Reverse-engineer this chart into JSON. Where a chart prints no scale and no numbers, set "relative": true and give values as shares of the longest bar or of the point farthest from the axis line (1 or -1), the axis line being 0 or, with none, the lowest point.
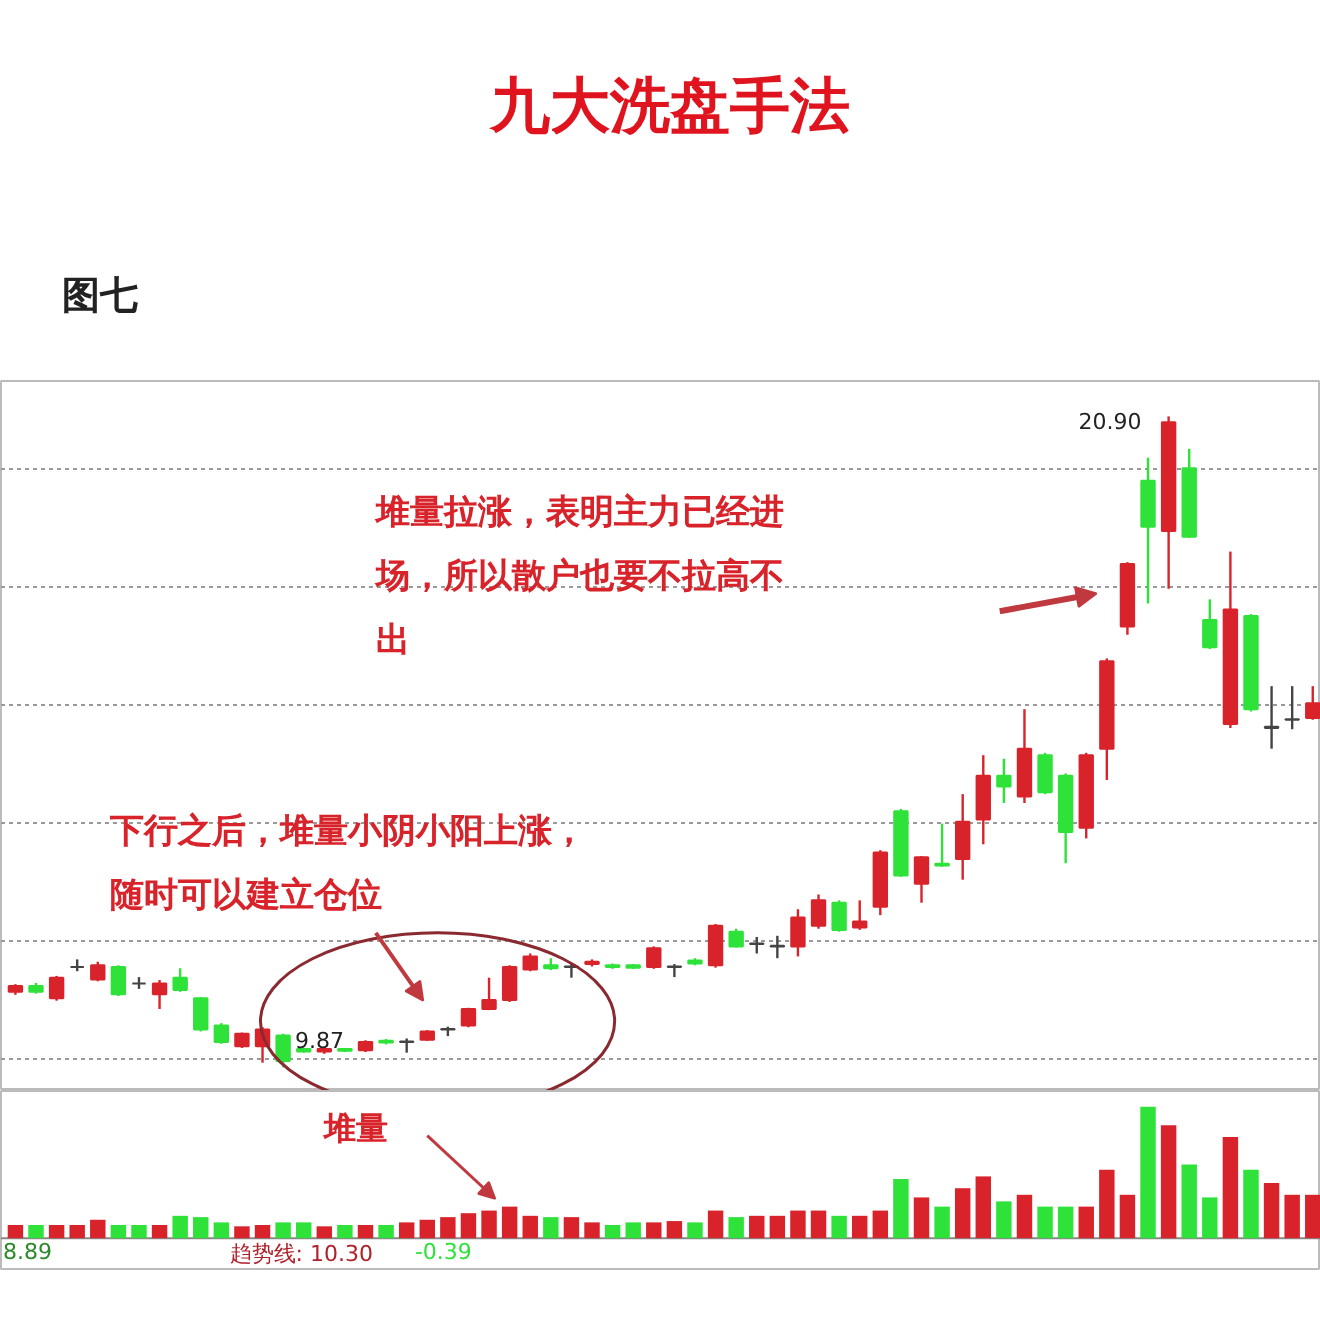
{
  "chart_data": [
    {
      "type": "candlestick",
      "title": "九大洗盘手法",
      "subtitle": "图七",
      "categories": [
        null,
        null,
        null,
        null,
        null,
        null,
        null,
        null,
        null,
        null,
        null,
        null,
        null,
        null,
        null,
        null,
        null,
        null,
        null,
        null,
        null,
        null,
        null,
        null,
        null,
        null,
        null,
        null,
        null,
        null,
        null,
        null,
        null,
        null,
        null,
        null,
        null,
        null,
        null,
        null,
        null,
        null,
        null,
        null,
        null,
        null,
        null,
        null,
        null,
        null,
        null,
        null,
        null,
        null,
        null,
        null,
        null,
        null,
        null,
        null,
        null,
        null,
        null,
        null
      ],
      "ohlc": [
        [
          11.15,
          11.28,
          11.1,
          11.25
        ],
        [
          11.25,
          11.3,
          11.12,
          11.15
        ],
        [
          11.04,
          11.42,
          11.0,
          11.39
        ],
        [
          11.57,
          11.7,
          11.5,
          11.57
        ],
        [
          11.36,
          11.66,
          11.33,
          11.6
        ],
        [
          11.57,
          11.6,
          11.08,
          11.11
        ],
        [
          11.29,
          11.4,
          11.2,
          11.29
        ],
        [
          11.11,
          11.35,
          10.86,
          11.29
        ],
        [
          11.39,
          11.55,
          11.15,
          11.18
        ],
        [
          11.04,
          11.06,
          10.48,
          10.51
        ],
        [
          10.58,
          10.62,
          10.27,
          10.3
        ],
        [
          10.23,
          10.46,
          10.2,
          10.44
        ],
        [
          10.23,
          10.55,
          9.95,
          10.51
        ],
        [
          10.41,
          10.44,
          9.87,
          9.98
        ],
        [
          10.18,
          10.2,
          10.12,
          10.14
        ],
        [
          10.14,
          10.2,
          10.1,
          10.18
        ],
        [
          10.18,
          10.2,
          10.13,
          10.15
        ],
        [
          10.16,
          10.33,
          10.13,
          10.3
        ],
        [
          10.32,
          10.35,
          10.26,
          10.29
        ],
        [
          10.3,
          10.36,
          10.12,
          10.31
        ],
        [
          10.34,
          10.5,
          10.32,
          10.48
        ],
        [
          10.51,
          10.56,
          10.4,
          10.52
        ],
        [
          10.58,
          10.88,
          10.55,
          10.86
        ],
        [
          10.86,
          11.39,
          10.84,
          11.01
        ],
        [
          11.01,
          11.6,
          10.98,
          11.57
        ],
        [
          11.53,
          11.8,
          11.5,
          11.75
        ],
        [
          11.6,
          11.72,
          11.52,
          11.55
        ],
        [
          11.57,
          11.62,
          11.39,
          11.58
        ],
        [
          11.62,
          11.7,
          11.58,
          11.66
        ],
        [
          11.6,
          11.63,
          11.54,
          11.57
        ],
        [
          11.6,
          11.62,
          11.54,
          11.56
        ],
        [
          11.57,
          11.92,
          11.54,
          11.89
        ],
        [
          11.57,
          11.62,
          11.4,
          11.58
        ],
        [
          11.68,
          11.72,
          11.6,
          11.63
        ],
        [
          11.6,
          12.3,
          11.56,
          12.27
        ],
        [
          12.17,
          12.22,
          11.9,
          11.92
        ],
        [
          11.96,
          12.08,
          11.8,
          11.97
        ],
        [
          11.92,
          12.1,
          11.72,
          11.93
        ],
        [
          11.92,
          12.55,
          11.75,
          12.41
        ],
        [
          12.27,
          12.8,
          12.22,
          12.7
        ],
        [
          12.66,
          12.7,
          12.17,
          12.2
        ],
        [
          12.24,
          12.7,
          12.2,
          12.34
        ],
        [
          12.59,
          13.55,
          12.45,
          13.51
        ],
        [
          14.21,
          14.25,
          13.1,
          13.12
        ],
        [
          12.98,
          13.45,
          12.66,
          13.43
        ],
        [
          13.32,
          14.0,
          13.27,
          13.29
        ],
        [
          13.4,
          14.5,
          13.05,
          14.03
        ],
        [
          14.07,
          15.16,
          13.65,
          14.81
        ],
        [
          14.81,
          15.1,
          14.35,
          14.63
        ],
        [
          14.46,
          15.94,
          14.35,
          15.27
        ],
        [
          15.16,
          15.2,
          14.5,
          14.53
        ],
        [
          14.81,
          14.85,
          13.33,
          13.86
        ],
        [
          13.93,
          15.2,
          13.75,
          15.16
        ],
        [
          15.27,
          16.8,
          14.74,
          16.75
        ],
        [
          17.34,
          18.43,
          17.2,
          18.4
        ],
        [
          19.81,
          20.2,
          17.73,
          19.03
        ],
        [
          18.96,
          20.9,
          17.98,
          20.8
        ],
        [
          20.02,
          20.35,
          18.84,
          18.86
        ],
        [
          17.45,
          17.8,
          16.96,
          16.99
        ],
        [
          15.69,
          18.61,
          15.62,
          17.63
        ],
        [
          17.52,
          17.55,
          15.9,
          15.94
        ],
        [
          15.62,
          16.33,
          15.27,
          15.64
        ],
        [
          15.76,
          16.33,
          15.6,
          15.77
        ],
        [
          15.79,
          16.33,
          15.76,
          16.04
        ]
      ],
      "colors": [
        "#d9232b",
        "#2ee23a",
        "#d9232b",
        "#444444",
        "#d9232b",
        "#2ee23a",
        "#444444",
        "#d9232b",
        "#2ee23a",
        "#2ee23a",
        "#2ee23a",
        "#d9232b",
        "#d9232b",
        "#2ee23a",
        "#2ee23a",
        "#d9232b",
        "#2ee23a",
        "#d9232b",
        "#2ee23a",
        "#444444",
        "#d9232b",
        "#444444",
        "#d9232b",
        "#d9232b",
        "#d9232b",
        "#d9232b",
        "#2ee23a",
        "#444444",
        "#d9232b",
        "#2ee23a",
        "#2ee23a",
        "#d9232b",
        "#444444",
        "#2ee23a",
        "#d9232b",
        "#2ee23a",
        "#444444",
        "#444444",
        "#d9232b",
        "#d9232b",
        "#2ee23a",
        "#d9232b",
        "#d9232b",
        "#2ee23a",
        "#d9232b",
        "#2ee23a",
        "#d9232b",
        "#d9232b",
        "#2ee23a",
        "#d9232b",
        "#2ee23a",
        "#2ee23a",
        "#d9232b",
        "#d9232b",
        "#d9232b",
        "#2ee23a",
        "#d9232b",
        "#2ee23a",
        "#2ee23a",
        "#d9232b",
        "#2ee23a",
        "#444444",
        "#444444",
        "#d9232b"
      ],
      "ylim": [
        9.47,
        21.5
      ],
      "yticks": [
        {
          "value": 10,
          "label": null
        },
        {
          "value": 12,
          "label": null
        },
        {
          "value": 14,
          "label": null
        },
        {
          "value": 16,
          "label": null
        },
        {
          "value": 18,
          "label": null
        },
        {
          "value": 20,
          "label": null
        }
      ],
      "grid": "y",
      "tick_labels": false,
      "annotations": [
        "堆量拉涨，表明主力已经进场，所以散户也要不拉高不出",
        "下行之后，堆量小阴小阳上涨，随时可以建立仓位",
        "20.90",
        "9.87"
      ]
    },
    {
      "type": "bar",
      "relative": true,
      "tick_labels": false,
      "categories": [
        null,
        null,
        null,
        null,
        null,
        null,
        null,
        null,
        null,
        null,
        null,
        null,
        null,
        null,
        null,
        null,
        null,
        null,
        null,
        null,
        null,
        null,
        null,
        null,
        null,
        null,
        null,
        null,
        null,
        null,
        null,
        null,
        null,
        null,
        null,
        null,
        null,
        null,
        null,
        null,
        null,
        null,
        null,
        null,
        null,
        null,
        null,
        null,
        null,
        null,
        null,
        null,
        null,
        null,
        null,
        null,
        null,
        null,
        null,
        null,
        null,
        null,
        null,
        null
      ],
      "values": [
        0.1,
        0.1,
        0.1,
        0.1,
        0.14,
        0.1,
        0.1,
        0.1,
        0.17,
        0.16,
        0.12,
        0.09,
        0.1,
        0.12,
        0.12,
        0.09,
        0.1,
        0.1,
        0.1,
        0.12,
        0.14,
        0.16,
        0.19,
        0.21,
        0.24,
        0.17,
        0.16,
        0.16,
        0.12,
        0.1,
        0.12,
        0.12,
        0.13,
        0.12,
        0.21,
        0.16,
        0.17,
        0.17,
        0.21,
        0.21,
        0.17,
        0.17,
        0.21,
        0.45,
        0.31,
        0.24,
        0.38,
        0.47,
        0.28,
        0.33,
        0.24,
        0.24,
        0.24,
        0.52,
        0.33,
        1,
        0.86,
        0.56,
        0.31,
        0.77,
        0.52,
        0.42,
        0.33,
        0.33
      ],
      "colors": [
        "#d9232b",
        "#2ee23a",
        "#d9232b",
        "#d9232b",
        "#d9232b",
        "#2ee23a",
        "#2ee23a",
        "#d9232b",
        "#2ee23a",
        "#2ee23a",
        "#2ee23a",
        "#d9232b",
        "#d9232b",
        "#2ee23a",
        "#2ee23a",
        "#d9232b",
        "#2ee23a",
        "#d9232b",
        "#2ee23a",
        "#d9232b",
        "#d9232b",
        "#d9232b",
        "#d9232b",
        "#d9232b",
        "#d9232b",
        "#d9232b",
        "#2ee23a",
        "#d9232b",
        "#d9232b",
        "#2ee23a",
        "#2ee23a",
        "#d9232b",
        "#d9232b",
        "#2ee23a",
        "#d9232b",
        "#2ee23a",
        "#d9232b",
        "#d9232b",
        "#d9232b",
        "#d9232b",
        "#2ee23a",
        "#d9232b",
        "#d9232b",
        "#2ee23a",
        "#d9232b",
        "#2ee23a",
        "#d9232b",
        "#d9232b",
        "#2ee23a",
        "#d9232b",
        "#2ee23a",
        "#2ee23a",
        "#d9232b",
        "#d9232b",
        "#d9232b",
        "#2ee23a",
        "#d9232b",
        "#2ee23a",
        "#2ee23a",
        "#d9232b",
        "#2ee23a",
        "#d9232b",
        "#d9232b",
        "#d9232b"
      ],
      "annotations": [
        "堆量",
        "8.89",
        "趋势线: 10.30",
        "-0.39"
      ]
    }
  ]
}
